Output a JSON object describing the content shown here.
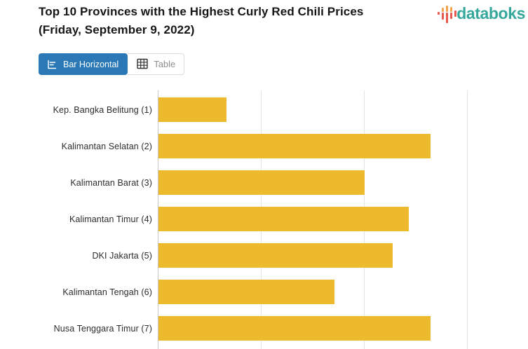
{
  "header": {
    "title_line1": "Top 10 Provinces with the Highest Curly Red Chili Prices",
    "title_line2": "(Friday, September 9, 2022)"
  },
  "brand": {
    "name": "databoks",
    "text_color": "#35A89B",
    "icon_orange": "#F2A24B",
    "icon_red": "#E6594C"
  },
  "toolbar": {
    "bar_horizontal_label": "Bar Horizontal",
    "table_label": "Table",
    "active_tab": "Bar Horizontal",
    "active_bg_color": "#2A79B6"
  },
  "chart_data": {
    "type": "bar",
    "orientation": "horizontal",
    "title": "Top 10 Provinces with the Highest Curly Red Chili Prices (Friday, September 9, 2022)",
    "categories": [
      "Kep. Bangka Belitung (1)",
      "Kalimantan Selatan (2)",
      "Kalimantan Barat (3)",
      "Kalimantan Timur (4)",
      "DKI Jakarta (5)",
      "Kalimantan Tengah (6)",
      "Nusa Tenggara Timur (7)"
    ],
    "values": [
      0.66,
      2.64,
      2.0,
      2.43,
      2.27,
      1.71,
      2.64
    ],
    "value_unit": "x-axis gridline intervals (numeric tick labels are cropped below the visible area)",
    "gridline_units": [
      0,
      1,
      2,
      3
    ],
    "bar_color": "#EDB92D",
    "grid": true,
    "legend": false,
    "xlabel": "",
    "ylabel": "",
    "visible_rows": 7,
    "notes": "Chart is cropped: rows 8-10 of the Top 10 and the x-axis scale are cut off at the bottom edge; plot area is cut off at the right edge."
  }
}
